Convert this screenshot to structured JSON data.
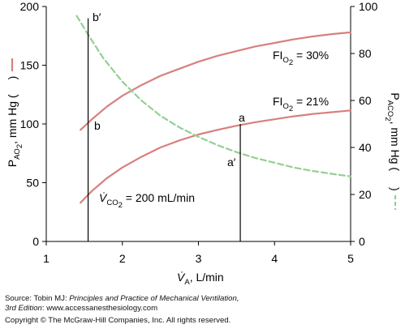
{
  "chart_data": {
    "type": "line",
    "x_axis": {
      "label_main": "V̇",
      "label_sub": "A",
      "label_rest": ", L/min",
      "ticks": [
        1,
        2,
        3,
        4,
        5
      ],
      "range": [
        1,
        5
      ]
    },
    "y_axis_left": {
      "label_main": "P",
      "label_sub": "AO",
      "label_subsub": "2",
      "label_rest": ", mm Hg (",
      "label_close": ")",
      "ticks": [
        0,
        50,
        100,
        150,
        200
      ],
      "range": [
        0,
        200
      ],
      "legend_line": "solid",
      "legend_color": "#d97f7f"
    },
    "y_axis_right": {
      "label_main": "P",
      "label_sub": "ACO",
      "label_subsub": "2",
      "label_rest": ", mm Hg (",
      "label_close": ")",
      "ticks": [
        0,
        20,
        40,
        60,
        80,
        100
      ],
      "range": [
        0,
        100
      ],
      "legend_line": "dashed",
      "legend_color": "#94cf94"
    },
    "series": [
      {
        "name": "FIO2 = 30%",
        "axis": "left",
        "style": "solid",
        "color": "#d97f7f",
        "x": [
          1.45,
          1.6,
          1.8,
          2.0,
          2.25,
          2.5,
          2.75,
          3.0,
          3.25,
          3.5,
          3.75,
          4.0,
          4.25,
          4.5,
          4.75,
          5.0
        ],
        "y": [
          95,
          104,
          115,
          124,
          133,
          141,
          147,
          153,
          158,
          162,
          166,
          169,
          172,
          174.5,
          176.5,
          178
        ]
      },
      {
        "name": "FIO2 = 21%",
        "axis": "left",
        "style": "solid",
        "color": "#d97f7f",
        "x": [
          1.45,
          1.6,
          1.8,
          2.0,
          2.25,
          2.5,
          2.75,
          3.0,
          3.25,
          3.5,
          3.75,
          4.0,
          4.25,
          4.5,
          4.75,
          5.0
        ],
        "y": [
          33,
          43,
          54,
          63,
          72,
          80,
          86,
          91,
          95,
          98.5,
          101.5,
          104,
          106.5,
          108.5,
          110,
          111.5
        ]
      },
      {
        "name": "PACO2",
        "axis": "right",
        "style": "dashed",
        "color": "#94cf94",
        "x": [
          1.4,
          1.55,
          1.75,
          2.0,
          2.25,
          2.5,
          2.75,
          3.0,
          3.25,
          3.5,
          3.75,
          4.0,
          4.25,
          4.5,
          4.75,
          5.0
        ],
        "y": [
          96,
          88,
          78,
          68,
          60,
          53.5,
          48.5,
          44.5,
          41,
          38,
          35.5,
          33.5,
          31.5,
          30,
          28.8,
          27.7
        ]
      }
    ],
    "vertical_lines": [
      {
        "x": 1.55,
        "y_from": 0,
        "y_to_left": 190
      },
      {
        "x": 3.55,
        "y_from": 0,
        "y_to_left": 100
      }
    ],
    "annotations": {
      "fio2_30": {
        "main": "FI",
        "sub": "O",
        "subsub": "2",
        "rest": " = 30%"
      },
      "fio2_21": {
        "main": "FI",
        "sub": "O",
        "subsub": "2",
        "rest": " = 21%"
      },
      "vco2": {
        "main": "V̇",
        "sub": "CO",
        "subsub": "2",
        "rest": " = 200 mL/min"
      },
      "b_prime": "b′",
      "b": "b",
      "a": "a",
      "a_prime": "a′"
    },
    "grid": false
  },
  "source": {
    "line1_prefix": "Source: Tobin MJ: ",
    "line1_title": "Principles and Practice of Mechanical Ventilation,",
    "line2_edition": "3rd Edition",
    "line2_rest": ": www.accessanesthesiology.com",
    "copyright": "Copyright © The McGraw-Hill Companies, Inc. All rights reserved."
  }
}
